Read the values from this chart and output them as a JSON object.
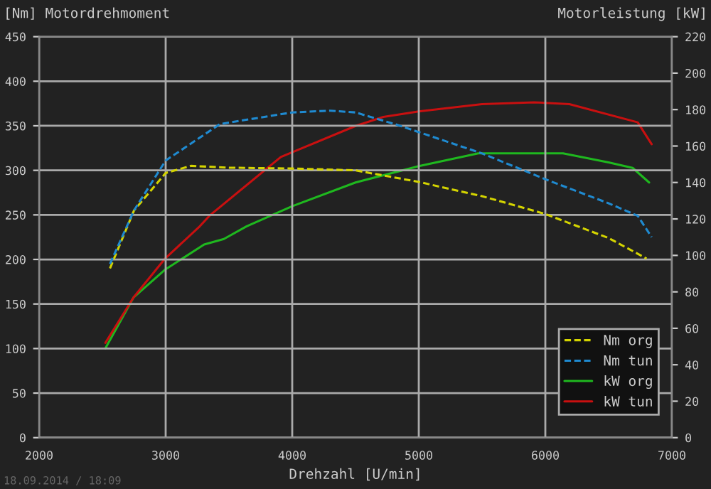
{
  "chart_data": {
    "type": "line",
    "ylabel": "[Nm] Motordrehmoment",
    "y2label": "Motorleistung [kW]",
    "xlabel": "Drehzahl [U/min]",
    "annotations": [
      "18.09.2014 / 18:09"
    ],
    "xlim": [
      2000,
      7000
    ],
    "xticks": [
      2000,
      3000,
      4000,
      5000,
      6000,
      7000
    ],
    "ylim": [
      0,
      450
    ],
    "yticks": [
      0,
      50,
      100,
      150,
      200,
      250,
      300,
      350,
      400,
      450
    ],
    "y2lim": [
      0,
      220
    ],
    "y2ticks": [
      0,
      20,
      40,
      60,
      80,
      100,
      120,
      140,
      160,
      180,
      200,
      220
    ],
    "grid": true,
    "legend": "bottom right",
    "marker": "none",
    "series": [
      {
        "name": "Nm org",
        "color": "#d4d400",
        "line_style": "dashed",
        "x": [
          2560,
          2750,
          3000,
          3200,
          3500,
          4000,
          4500,
          5000,
          5500,
          6000,
          6500,
          6800
        ],
        "values": [
          190,
          255,
          297,
          305,
          303,
          302,
          300,
          287,
          271,
          251,
          224,
          201
        ]
      },
      {
        "name": "Nm tun",
        "color": "#1f8ad0",
        "line_style": "dashed",
        "x": [
          2560,
          2750,
          3000,
          3430,
          4000,
          4300,
          4500,
          4830,
          5500,
          6000,
          6500,
          6730,
          6840
        ],
        "values": [
          195,
          255,
          311,
          352,
          365,
          367,
          365,
          351,
          319,
          290,
          263,
          249,
          225
        ]
      },
      {
        "name": "kW org",
        "color": "#1fb81f",
        "line_style": "solid",
        "axis": "y2",
        "x": [
          2524,
          2747,
          2992,
          3304,
          3460,
          3640,
          4000,
          4500,
          5000,
          5470,
          6140,
          6500,
          6690,
          6820
        ],
        "values": [
          49,
          77,
          92,
          106,
          109,
          116,
          127,
          140,
          149,
          156,
          156,
          151,
          148,
          140
        ]
      },
      {
        "name": "kW tun",
        "color": "#c81010",
        "line_style": "solid",
        "axis": "y2",
        "x": [
          2524,
          2747,
          2992,
          3270,
          3350,
          3910,
          4500,
          4720,
          5000,
          5500,
          5910,
          6190,
          6730,
          6840
        ],
        "values": [
          52,
          77,
          98,
          116,
          122,
          154,
          171,
          176,
          179,
          183,
          184,
          183,
          173,
          161
        ]
      }
    ]
  }
}
